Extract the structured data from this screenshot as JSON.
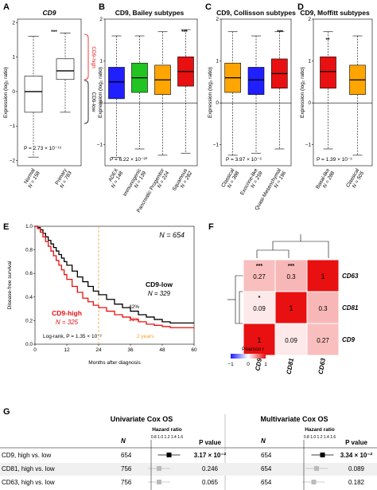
{
  "panels": {
    "A": {
      "letter": "A",
      "title": "CD9",
      "ylabel": "Expression (log₂ ratio)",
      "sig": "***",
      "pval": "P = 2.73 × 10⁻¹⁹",
      "bracket_high": "CD9-high",
      "bracket_low": "CD9-low",
      "yticks": [
        "2",
        "1",
        "0",
        "−1",
        "−2"
      ]
    },
    "B": {
      "letter": "B",
      "title": "CD9, Bailey subtypes",
      "ylabel": "Expression (log₂ ratio)",
      "sig": "***",
      "pval": "P = 6.22 × 10⁻³⁰",
      "yticks": [
        "2",
        "1",
        "0",
        "−1"
      ]
    },
    "C": {
      "letter": "C",
      "title": "CD9, Collisson subtypes",
      "ylabel": "Expression (log₂ ratio)",
      "sig": "***",
      "pval": "P = 3.97 × 10⁻⁶",
      "yticks": [
        "2",
        "1",
        "0",
        "−1"
      ]
    },
    "D": {
      "letter": "D",
      "title": "CD9, Moffitt subtypes",
      "ylabel": "Expression (log₂ ratio)",
      "sig": "**",
      "pval": "P = 1.39 × 10⁻³",
      "yticks": [
        "2",
        "1",
        "0",
        "−1"
      ]
    },
    "E": {
      "letter": "E",
      "ylabel": "Disease-free survival",
      "xlabel": "Months after diagnosis",
      "n_total": "N = 654",
      "low_label": "CD9-low",
      "low_n": "N = 329",
      "low_pct": "42%",
      "high_label": "CD9-high",
      "high_n": "N = 325",
      "high_pct": "31%",
      "logrank": "Log-rank, P = 1.35 × 10⁻²",
      "two_years": "2 years",
      "xticks": [
        "0",
        "12",
        "24",
        "36",
        "48",
        "60"
      ],
      "yticks": [
        "1.0",
        "0.8",
        "0.6",
        "0.4",
        "0.2",
        "0.0"
      ]
    },
    "F": {
      "letter": "F",
      "legend_title": "Pearson r",
      "legend_ticks": [
        "−1",
        "0",
        "1"
      ],
      "genes_rows": [
        "CD63",
        "CD81",
        "CD9"
      ],
      "genes_cols": [
        "CD9",
        "CD81",
        "CD63"
      ]
    },
    "G": {
      "letter": "G",
      "uni_title": "Univariate Cox OS",
      "multi_title": "Multivariate Cox OS",
      "n_header": "N",
      "hr_header": "Hazard ratio",
      "p_header": "P value",
      "hr_ticks": "0.8 1.0 1.2 1.4 1.6"
    }
  },
  "chart_data": [
    {
      "type": "box",
      "panel": "A",
      "categories": [
        "Normal",
        "Primary"
      ],
      "n_labels": [
        "N = 158",
        "N = 783"
      ],
      "colors": [
        "#ffffff",
        "#ffffff"
      ],
      "boxes": [
        {
          "min": -1.9,
          "q1": -0.6,
          "median": 0.0,
          "q3": 0.45,
          "max": 1.6
        },
        {
          "min": -0.6,
          "q1": 0.35,
          "median": 0.6,
          "q3": 0.95,
          "max": 1.7
        }
      ],
      "ylim": [
        -2.15,
        2.1
      ]
    },
    {
      "type": "box",
      "panel": "B",
      "categories": [
        "ADEX",
        "Immunogenic",
        "Pancreatic Progenitor",
        "Squamous"
      ],
      "n_labels": [
        "N = 148",
        "N = 139",
        "N = 224",
        "N = 282"
      ],
      "colors": [
        "#1f1fff",
        "#21c421",
        "#ffa500",
        "#e81010"
      ],
      "boxes": [
        {
          "min": -1.3,
          "q1": 0.1,
          "median": 0.5,
          "q3": 0.85,
          "max": 1.6
        },
        {
          "min": -1.1,
          "q1": 0.25,
          "median": 0.6,
          "q3": 0.95,
          "max": 1.6
        },
        {
          "min": -1.25,
          "q1": 0.2,
          "median": 0.55,
          "q3": 0.9,
          "max": 1.7
        },
        {
          "min": -1.2,
          "q1": 0.4,
          "median": 0.75,
          "q3": 1.1,
          "max": 1.75
        }
      ],
      "ylim": [
        -1.5,
        2.0
      ]
    },
    {
      "type": "box",
      "panel": "C",
      "categories": [
        "Classical",
        "Exocrine-like",
        "Quasi-Mesenchymal"
      ],
      "n_labels": [
        "N = 388",
        "N = 259",
        "N = 196"
      ],
      "colors": [
        "#ffa500",
        "#1f1fff",
        "#e81010"
      ],
      "boxes": [
        {
          "min": -1.25,
          "q1": 0.25,
          "median": 0.6,
          "q3": 0.95,
          "max": 1.7
        },
        {
          "min": -1.2,
          "q1": 0.2,
          "median": 0.55,
          "q3": 0.85,
          "max": 1.6
        },
        {
          "min": -1.1,
          "q1": 0.35,
          "median": 0.7,
          "q3": 1.05,
          "max": 1.7
        }
      ],
      "ylim": [
        -1.5,
        2.0
      ]
    },
    {
      "type": "box",
      "panel": "D",
      "categories": [
        "Basal-like",
        "Classical"
      ],
      "n_labels": [
        "N = 288",
        "N = 505"
      ],
      "colors": [
        "#e81010",
        "#ffa500"
      ],
      "boxes": [
        {
          "min": -1.1,
          "q1": 0.35,
          "median": 0.75,
          "q3": 1.1,
          "max": 1.7
        },
        {
          "min": -1.25,
          "q1": 0.2,
          "median": 0.55,
          "q3": 0.9,
          "max": 1.6
        }
      ],
      "ylim": [
        -1.5,
        2.0
      ]
    },
    {
      "type": "line",
      "panel": "E",
      "xlim": [
        0,
        60
      ],
      "ylim": [
        0,
        1
      ],
      "series": [
        {
          "name": "CD9-low",
          "color": "#000000",
          "x": [
            0,
            1,
            2,
            3,
            4,
            5,
            6,
            7,
            8,
            9,
            10,
            11,
            12,
            14,
            16,
            18,
            20,
            22,
            24,
            27,
            30,
            33,
            36,
            39,
            42,
            45,
            48,
            51,
            54,
            57,
            60
          ],
          "y": [
            1,
            0.99,
            0.97,
            0.94,
            0.91,
            0.88,
            0.85,
            0.82,
            0.79,
            0.76,
            0.73,
            0.7,
            0.67,
            0.62,
            0.57,
            0.53,
            0.49,
            0.45,
            0.42,
            0.38,
            0.34,
            0.31,
            0.28,
            0.25,
            0.23,
            0.21,
            0.19,
            0.18,
            0.18,
            0.18,
            0.18
          ]
        },
        {
          "name": "CD9-high",
          "color": "#e81010",
          "x": [
            0,
            1,
            2,
            3,
            4,
            5,
            6,
            7,
            8,
            9,
            10,
            11,
            12,
            14,
            16,
            18,
            20,
            22,
            24,
            27,
            30,
            33,
            36,
            39,
            42,
            45,
            48,
            51,
            54,
            57,
            60
          ],
          "y": [
            1,
            0.98,
            0.95,
            0.91,
            0.87,
            0.83,
            0.79,
            0.75,
            0.71,
            0.67,
            0.63,
            0.59,
            0.55,
            0.49,
            0.44,
            0.39,
            0.36,
            0.33,
            0.31,
            0.28,
            0.25,
            0.23,
            0.21,
            0.19,
            0.17,
            0.16,
            0.15,
            0.14,
            0.14,
            0.14,
            0.14
          ]
        }
      ]
    },
    {
      "type": "heatmap",
      "panel": "F",
      "rows": [
        "CD63",
        "CD81",
        "CD9"
      ],
      "cols": [
        "CD9",
        "CD81",
        "CD63"
      ],
      "values": [
        [
          0.27,
          0.3,
          1
        ],
        [
          0.09,
          1,
          0.3
        ],
        [
          1,
          0.09,
          0.27
        ]
      ],
      "stars": [
        [
          "***",
          "***",
          ""
        ],
        [
          "*",
          "",
          ""
        ],
        [
          "",
          "",
          ""
        ]
      ]
    },
    {
      "type": "table",
      "panel": "G",
      "rows": [
        {
          "label": "CD9, high vs. low",
          "uni_n": "654",
          "uni_p": "3.17 × 10⁻²",
          "multi_n": "654",
          "multi_p": "3.34 × 10⁻²",
          "uni_hr": 1.25,
          "multi_hr": 1.27,
          "bold": true
        },
        {
          "label": "CD81, high vs. low",
          "uni_n": "756",
          "uni_p": "0.246",
          "multi_n": "654",
          "multi_p": "0.089",
          "uni_hr": 1.0,
          "multi_hr": 1.12,
          "bold": false
        },
        {
          "label": "CD63, high vs. low",
          "uni_n": "756",
          "uni_p": "0.065",
          "multi_n": "654",
          "multi_p": "0.182",
          "uni_hr": 1.0,
          "multi_hr": 1.05,
          "bold": false
        }
      ]
    }
  ]
}
